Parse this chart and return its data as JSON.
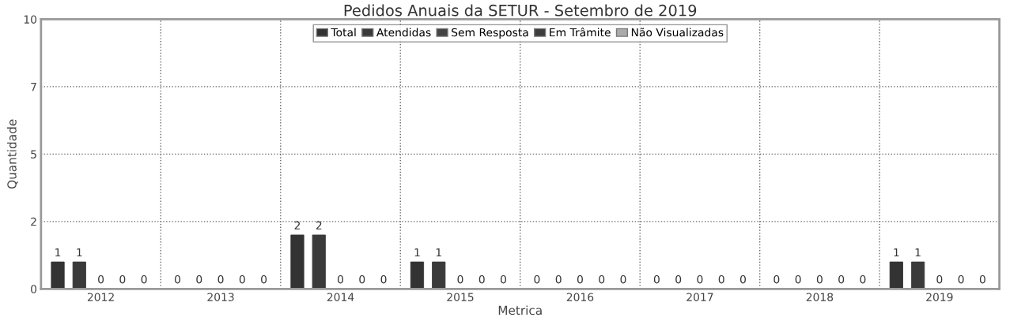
{
  "chart_data": {
    "type": "bar",
    "title": "Pedidos Anuais da SETUR - Setembro de 2019",
    "xlabel": "Metrica",
    "ylabel": "Quantidade",
    "categories": [
      "2012",
      "2013",
      "2014",
      "2015",
      "2016",
      "2017",
      "2018",
      "2019"
    ],
    "series": [
      {
        "name": "Total",
        "color": "#333333",
        "values": [
          1,
          0,
          2,
          1,
          0,
          0,
          0,
          1
        ]
      },
      {
        "name": "Atendidas",
        "color": "#3a3a3a",
        "values": [
          1,
          0,
          2,
          1,
          0,
          0,
          0,
          1
        ]
      },
      {
        "name": "Sem Resposta",
        "color": "#444444",
        "values": [
          0,
          0,
          0,
          0,
          0,
          0,
          0,
          0
        ]
      },
      {
        "name": "Em Trâmite",
        "color": "#3d3d3d",
        "values": [
          0,
          0,
          0,
          0,
          0,
          0,
          0,
          0
        ]
      },
      {
        "name": "Não Visualizadas",
        "color": "#aaaaaa",
        "values": [
          0,
          0,
          0,
          0,
          0,
          0,
          0,
          0
        ]
      }
    ],
    "ylim": [
      0,
      10
    ],
    "yticks": [
      0,
      {
        "value": 2.5,
        "label": "2"
      },
      5,
      {
        "value": 7.5,
        "label": "7"
      },
      10
    ],
    "grid": true,
    "legend": "top",
    "data_labels": true
  }
}
